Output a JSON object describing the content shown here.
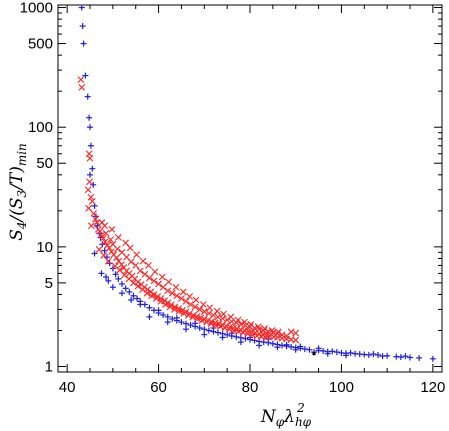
{
  "chart_data": {
    "type": "scatter",
    "title": "",
    "xlabel": "N_φ λ_hφ^2",
    "ylabel": "S_4/(S_3/T)_min",
    "xlabel_parts": {
      "base": "N",
      "sub1": "φ",
      "lambda": "λ",
      "sub2": "hφ",
      "sup": "2"
    },
    "ylabel_parts": {
      "s4": "S",
      "sub4": "4",
      "mid": "/(S",
      "sub3": "3",
      "tail": "/T)",
      "submin": "min"
    },
    "xlim": [
      38,
      122
    ],
    "ylim": [
      0.9,
      1050
    ],
    "yscale": "log",
    "grid": false,
    "x_ticks": [
      40,
      60,
      80,
      100,
      120
    ],
    "x_tick_labels": [
      "40",
      "60",
      "80",
      "100",
      "120"
    ],
    "y_ticks": [
      1,
      5,
      10,
      50,
      100,
      500,
      1000
    ],
    "y_tick_labels": [
      "1",
      "5",
      "10",
      "50",
      "100",
      "500",
      "1000"
    ],
    "colors": {
      "series_plus": "#1f1fd9",
      "series_x": "#ff2020",
      "black_point": "#000000"
    },
    "series": [
      {
        "marker": "plus",
        "color": "#1f1fd9",
        "points": [
          [
            43.2,
            1000
          ],
          [
            43.4,
            700
          ],
          [
            43.6,
            500
          ],
          [
            44.0,
            270
          ],
          [
            44.5,
            180
          ],
          [
            44.8,
            120
          ],
          [
            45.0,
            100
          ],
          [
            45.2,
            70
          ],
          [
            45.5,
            45
          ],
          [
            45.0,
            40
          ],
          [
            45.7,
            33
          ],
          [
            46.0,
            22
          ],
          [
            46.3,
            18
          ],
          [
            46.6,
            15
          ],
          [
            47.0,
            13
          ],
          [
            47.3,
            12
          ],
          [
            47.7,
            10.5
          ],
          [
            48.2,
            9.3
          ],
          [
            46.0,
            8.8
          ],
          [
            48.7,
            8.2
          ],
          [
            49.3,
            7.3
          ],
          [
            50.0,
            6.6
          ],
          [
            47.5,
            6.0
          ],
          [
            50.6,
            5.9
          ],
          [
            51.2,
            5.4
          ],
          [
            52.0,
            4.9
          ],
          [
            49.0,
            5.2
          ],
          [
            52.8,
            4.5
          ],
          [
            53.6,
            4.2
          ],
          [
            54.5,
            3.9
          ],
          [
            55.3,
            3.7
          ],
          [
            56.0,
            3.5
          ],
          [
            57.0,
            3.3
          ],
          [
            58.0,
            3.1
          ],
          [
            59.0,
            2.95
          ],
          [
            60.0,
            2.8
          ],
          [
            61.0,
            2.7
          ],
          [
            62.0,
            2.6
          ],
          [
            63.0,
            2.5
          ],
          [
            64.0,
            2.42
          ],
          [
            65.0,
            2.35
          ],
          [
            66.0,
            2.28
          ],
          [
            67.0,
            2.22
          ],
          [
            68.0,
            2.16
          ],
          [
            69.0,
            2.1
          ],
          [
            70.0,
            2.05
          ],
          [
            71.0,
            2.0
          ],
          [
            72.0,
            1.96
          ],
          [
            73.0,
            1.92
          ],
          [
            74.0,
            1.88
          ],
          [
            75.0,
            1.84
          ],
          [
            76.0,
            1.8
          ],
          [
            77.0,
            1.77
          ],
          [
            78.0,
            1.74
          ],
          [
            79.0,
            1.71
          ],
          [
            80.0,
            1.68
          ],
          [
            81.0,
            1.65
          ],
          [
            82.0,
            1.62
          ],
          [
            83.0,
            1.6
          ],
          [
            84.0,
            1.58
          ],
          [
            85.0,
            1.55
          ],
          [
            86.0,
            1.53
          ],
          [
            87.0,
            1.5
          ],
          [
            88.0,
            1.48
          ],
          [
            89.0,
            1.46
          ],
          [
            90.0,
            1.44
          ],
          [
            91.0,
            1.42
          ],
          [
            92.0,
            1.4
          ],
          [
            93.0,
            1.38
          ],
          [
            95.0,
            1.36
          ],
          [
            96.0,
            1.35
          ],
          [
            97.0,
            1.33
          ],
          [
            98.0,
            1.34
          ],
          [
            99.0,
            1.32
          ],
          [
            100.0,
            1.3
          ],
          [
            101.0,
            1.29
          ],
          [
            102.0,
            1.3
          ],
          [
            103.0,
            1.28
          ],
          [
            105.0,
            1.26
          ],
          [
            106.0,
            1.25
          ],
          [
            107.0,
            1.27
          ],
          [
            108.0,
            1.25
          ],
          [
            110.0,
            1.23
          ],
          [
            112.0,
            1.21
          ],
          [
            113.0,
            1.2
          ],
          [
            114.0,
            1.22
          ],
          [
            115.0,
            1.19
          ],
          [
            117.0,
            1.18
          ],
          [
            120.0,
            1.16
          ],
          [
            58.0,
            2.6
          ],
          [
            62.0,
            2.35
          ],
          [
            66.0,
            2.05
          ],
          [
            70.0,
            1.85
          ],
          [
            74.0,
            1.75
          ],
          [
            78.0,
            1.6
          ],
          [
            82.0,
            1.5
          ],
          [
            86.0,
            1.45
          ],
          [
            90.0,
            1.38
          ],
          [
            94.0,
            1.32
          ],
          [
            97.0,
            1.28
          ],
          [
            101.0,
            1.24
          ],
          [
            104.0,
            1.27
          ],
          [
            109.0,
            1.22
          ],
          [
            95.0,
            1.42
          ],
          [
            91.0,
            1.47
          ],
          [
            88.0,
            1.52
          ],
          [
            84.0,
            1.7
          ],
          [
            80.0,
            1.75
          ],
          [
            76.0,
            1.9
          ],
          [
            72.0,
            2.1
          ],
          [
            68.0,
            2.3
          ],
          [
            64.0,
            2.55
          ],
          [
            60.0,
            2.95
          ],
          [
            56.0,
            3.3
          ],
          [
            54.0,
            3.6
          ],
          [
            52.0,
            4.1
          ],
          [
            50.0,
            4.6
          ],
          [
            48.5,
            5.6
          ]
        ]
      },
      {
        "marker": "x",
        "color": "#ff2020",
        "points": [
          [
            43.0,
            250
          ],
          [
            43.2,
            215
          ],
          [
            44.8,
            60
          ],
          [
            45.0,
            55
          ],
          [
            44.9,
            35
          ],
          [
            44.6,
            30
          ],
          [
            45.2,
            26
          ],
          [
            45.5,
            24
          ],
          [
            44.7,
            21
          ],
          [
            45.8,
            19
          ],
          [
            46.2,
            17
          ],
          [
            46.5,
            16
          ],
          [
            45.3,
            15
          ],
          [
            46.8,
            14
          ],
          [
            47.2,
            13.5
          ],
          [
            47.5,
            12.5
          ],
          [
            47.9,
            11.8
          ],
          [
            48.3,
            11.0
          ],
          [
            48.8,
            10.3
          ],
          [
            49.2,
            9.8
          ],
          [
            49.7,
            9.1
          ],
          [
            50.2,
            8.6
          ],
          [
            50.8,
            8.1
          ],
          [
            51.3,
            7.6
          ],
          [
            51.9,
            7.1
          ],
          [
            52.4,
            6.7
          ],
          [
            53.0,
            6.3
          ],
          [
            53.6,
            6.0
          ],
          [
            54.2,
            5.7
          ],
          [
            54.8,
            5.4
          ],
          [
            55.5,
            5.1
          ],
          [
            56.2,
            4.85
          ],
          [
            56.9,
            4.6
          ],
          [
            57.6,
            4.4
          ],
          [
            58.3,
            4.2
          ],
          [
            59.0,
            4.0
          ],
          [
            59.8,
            3.85
          ],
          [
            60.5,
            3.7
          ],
          [
            61.3,
            3.55
          ],
          [
            62.0,
            3.4
          ],
          [
            62.8,
            3.28
          ],
          [
            63.6,
            3.15
          ],
          [
            64.4,
            3.05
          ],
          [
            65.2,
            2.95
          ],
          [
            66.0,
            2.86
          ],
          [
            66.8,
            2.77
          ],
          [
            67.6,
            2.69
          ],
          [
            68.4,
            2.62
          ],
          [
            69.2,
            2.55
          ],
          [
            70.0,
            2.49
          ],
          [
            70.8,
            2.43
          ],
          [
            71.6,
            2.37
          ],
          [
            72.4,
            2.32
          ],
          [
            73.2,
            2.27
          ],
          [
            74.0,
            2.22
          ],
          [
            74.8,
            2.18
          ],
          [
            75.6,
            2.14
          ],
          [
            76.4,
            2.1
          ],
          [
            77.2,
            2.06
          ],
          [
            78.0,
            2.03
          ],
          [
            78.8,
            2.0
          ],
          [
            79.6,
            1.97
          ],
          [
            80.4,
            1.94
          ],
          [
            81.2,
            1.91
          ],
          [
            82.0,
            1.88
          ],
          [
            82.8,
            1.85
          ],
          [
            83.6,
            1.82
          ],
          [
            84.4,
            1.79
          ],
          [
            85.2,
            1.77
          ],
          [
            86.0,
            1.75
          ],
          [
            87.0,
            1.72
          ],
          [
            88.0,
            1.7
          ],
          [
            89.0,
            1.68
          ],
          [
            90.0,
            1.66
          ],
          [
            48.0,
            8.5
          ],
          [
            48.5,
            13
          ],
          [
            49.0,
            7.6
          ],
          [
            49.5,
            11.5
          ],
          [
            50.0,
            10.5
          ],
          [
            50.5,
            6.9
          ],
          [
            51.0,
            9.6
          ],
          [
            51.5,
            6.4
          ],
          [
            52.0,
            9.0
          ],
          [
            52.5,
            5.8
          ],
          [
            53.0,
            8.2
          ],
          [
            53.5,
            5.4
          ],
          [
            54.0,
            7.5
          ],
          [
            54.5,
            5.0
          ],
          [
            55.0,
            7.0
          ],
          [
            55.5,
            4.7
          ],
          [
            56.0,
            6.3
          ],
          [
            56.5,
            4.4
          ],
          [
            57.0,
            5.9
          ],
          [
            57.5,
            4.1
          ],
          [
            58.0,
            5.5
          ],
          [
            58.5,
            3.9
          ],
          [
            59.0,
            5.2
          ],
          [
            59.5,
            3.7
          ],
          [
            60.0,
            4.9
          ],
          [
            60.5,
            3.5
          ],
          [
            61.0,
            4.6
          ],
          [
            61.5,
            3.3
          ],
          [
            62.0,
            4.3
          ],
          [
            62.5,
            3.15
          ],
          [
            63.0,
            4.1
          ],
          [
            63.5,
            3.0
          ],
          [
            64.0,
            3.9
          ],
          [
            64.5,
            2.9
          ],
          [
            65.0,
            3.7
          ],
          [
            65.5,
            2.78
          ],
          [
            66.0,
            3.5
          ],
          [
            66.5,
            2.68
          ],
          [
            67.0,
            3.3
          ],
          [
            67.5,
            2.58
          ],
          [
            68.0,
            3.15
          ],
          [
            68.5,
            2.5
          ],
          [
            69.0,
            3.0
          ],
          [
            69.5,
            2.42
          ],
          [
            70.0,
            2.88
          ],
          [
            70.5,
            2.35
          ],
          [
            71.0,
            2.78
          ],
          [
            71.5,
            2.28
          ],
          [
            72.0,
            2.68
          ],
          [
            72.5,
            2.22
          ],
          [
            73.0,
            2.6
          ],
          [
            73.5,
            2.16
          ],
          [
            74.0,
            2.52
          ],
          [
            74.5,
            2.1
          ],
          [
            75.0,
            2.45
          ],
          [
            75.5,
            2.05
          ],
          [
            76.0,
            2.38
          ],
          [
            76.5,
            2.0
          ],
          [
            77.0,
            2.32
          ],
          [
            77.5,
            1.96
          ],
          [
            78.0,
            2.25
          ],
          [
            78.5,
            1.92
          ],
          [
            79.0,
            2.2
          ],
          [
            79.5,
            1.88
          ],
          [
            80.0,
            2.15
          ],
          [
            80.5,
            1.84
          ],
          [
            81.0,
            2.1
          ],
          [
            81.5,
            1.8
          ],
          [
            82.0,
            2.05
          ],
          [
            82.5,
            1.77
          ],
          [
            83.0,
            2.0
          ],
          [
            83.5,
            1.74
          ],
          [
            84.0,
            1.96
          ],
          [
            85.0,
            1.92
          ],
          [
            86.0,
            1.88
          ],
          [
            87.0,
            1.84
          ],
          [
            88.0,
            1.8
          ],
          [
            89.0,
            1.95
          ],
          [
            90.0,
            1.9
          ],
          [
            47.0,
            9.5
          ],
          [
            47.6,
            16
          ],
          [
            48.2,
            15
          ],
          [
            49.8,
            14
          ],
          [
            51.2,
            12
          ],
          [
            52.8,
            10.8
          ],
          [
            53.8,
            9.8
          ],
          [
            55.2,
            8.6
          ],
          [
            56.6,
            7.6
          ],
          [
            57.8,
            7.0
          ],
          [
            59.2,
            6.2
          ],
          [
            60.8,
            5.6
          ],
          [
            62.2,
            5.1
          ],
          [
            63.8,
            4.6
          ],
          [
            65.4,
            4.2
          ],
          [
            66.8,
            3.85
          ],
          [
            68.2,
            3.6
          ],
          [
            69.8,
            3.3
          ],
          [
            71.2,
            3.1
          ],
          [
            72.8,
            2.9
          ],
          [
            74.2,
            2.75
          ],
          [
            75.8,
            2.6
          ],
          [
            77.4,
            2.45
          ],
          [
            78.8,
            2.35
          ],
          [
            80.2,
            2.25
          ],
          [
            81.8,
            2.15
          ],
          [
            83.2,
            2.08
          ],
          [
            84.8,
            2.0
          ],
          [
            86.2,
            1.95
          ]
        ]
      },
      {
        "marker": "dot",
        "color": "#000000",
        "points": [
          [
            94.0,
            1.28
          ]
        ]
      }
    ]
  }
}
